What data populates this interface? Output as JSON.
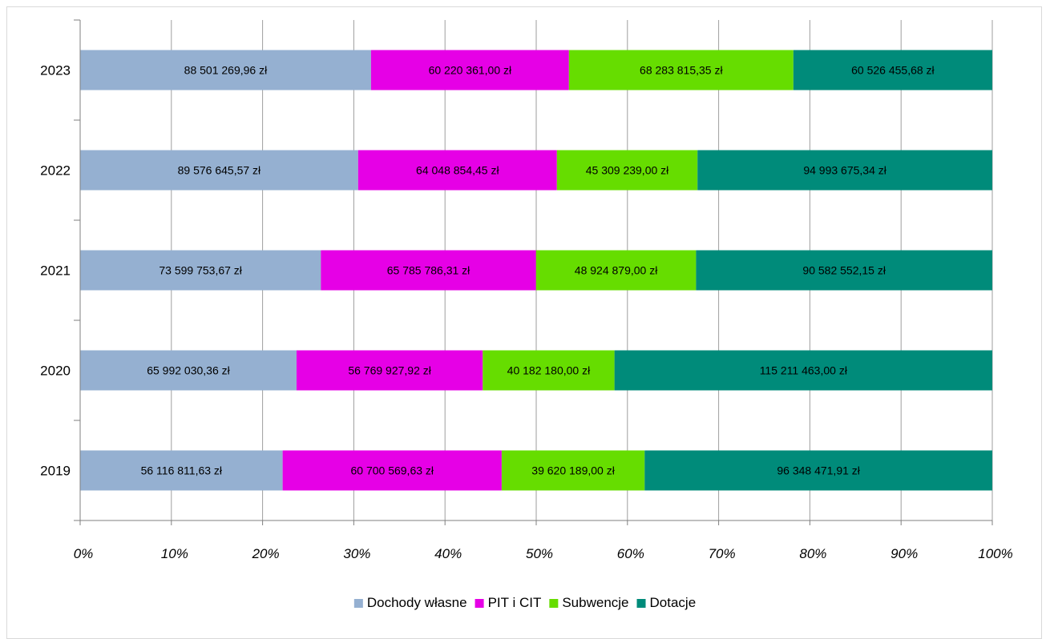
{
  "chart_data": {
    "type": "bar",
    "orientation": "horizontal",
    "stacked": "percent",
    "title": "",
    "xlabel": "",
    "ylabel": "",
    "xlim": [
      0,
      100
    ],
    "x_ticks": [
      "0%",
      "10%",
      "20%",
      "30%",
      "40%",
      "50%",
      "60%",
      "70%",
      "80%",
      "90%",
      "100%"
    ],
    "grid": true,
    "legend_position": "bottom",
    "categories": [
      "2019",
      "2020",
      "2021",
      "2022",
      "2023"
    ],
    "series": [
      {
        "name": "Dochody własne",
        "color": "#95B0D1",
        "values": [
          56116811.63,
          65992030.36,
          73599753.67,
          89576645.57,
          88501269.96
        ],
        "labels": [
          "56 116 811,63 zł",
          "65 992 030,36 zł",
          "73 599 753,67 zł",
          "89 576 645,57 zł",
          "88 501 269,96 zł"
        ]
      },
      {
        "name": "PIT i CIT",
        "color": "#E600E6",
        "values": [
          60700569.63,
          56769927.92,
          65785786.31,
          64048854.45,
          60220361.0
        ],
        "labels": [
          "60 700 569,63 zł",
          "56 769 927,92 zł",
          "65 785 786,31 zł",
          "64 048 854,45 zł",
          "60 220 361,00 zł"
        ]
      },
      {
        "name": "Subwencje",
        "color": "#66DD00",
        "values": [
          39620189.0,
          40182180.0,
          48924879.0,
          45309239.0,
          68283815.35
        ],
        "labels": [
          "39 620 189,00 zł",
          "40 182 180,00 zł",
          "48 924 879,00 zł",
          "45 309 239,00 zł",
          "68 283 815,35 zł"
        ]
      },
      {
        "name": "Dotacje",
        "color": "#008B7A",
        "values": [
          96348471.91,
          115211463.0,
          90582552.15,
          94993675.34,
          60526455.68
        ],
        "labels": [
          "96 348 471,91 zł",
          "115 211 463,00 zł",
          "90 582 552,15 zł",
          "94 993 675,34 zł",
          "60 526 455,68 zł"
        ]
      }
    ]
  }
}
